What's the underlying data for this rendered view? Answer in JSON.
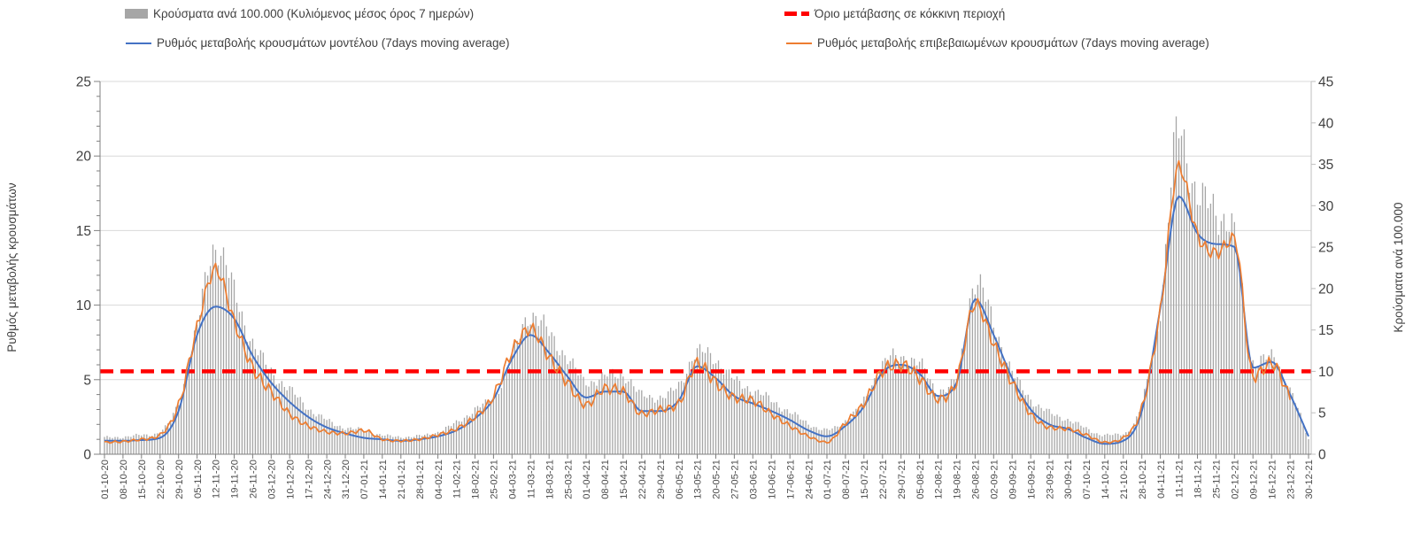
{
  "chart_data": {
    "type": "combo: daily bars + two lines, dual y-axis",
    "title": "",
    "x_axis": {
      "unit": "day",
      "range": "01-10-2020 to 30-12-2021",
      "tick_interval": "7 days",
      "tick_labels": [
        "01-10-20",
        "08-10-20",
        "15-10-20",
        "22-10-20",
        "29-10-20",
        "05-11-20",
        "12-11-20",
        "19-11-20",
        "26-11-20",
        "03-12-20",
        "10-12-20",
        "17-12-20",
        "24-12-20",
        "31-12-20",
        "07-01-21",
        "14-01-21",
        "21-01-21",
        "28-01-21",
        "04-02-21",
        "11-02-21",
        "18-02-21",
        "25-02-21",
        "04-03-21",
        "11-03-21",
        "18-03-21",
        "25-03-21",
        "01-04-21",
        "08-04-21",
        "15-04-21",
        "22-04-21",
        "29-04-21",
        "06-05-21",
        "13-05-21",
        "20-05-21",
        "27-05-21",
        "03-06-21",
        "10-06-21",
        "17-06-21",
        "24-06-21",
        "01-07-21",
        "08-07-21",
        "15-07-21",
        "22-07-21",
        "29-07-21",
        "05-08-21",
        "12-08-21",
        "19-08-21",
        "26-08-21",
        "02-09-21",
        "09-09-21",
        "16-09-21",
        "23-09-21",
        "30-09-21",
        "07-10-21",
        "14-10-21",
        "21-10-21",
        "28-10-21",
        "04-11-21",
        "11-11-21",
        "18-11-21",
        "25-11-21",
        "02-12-21",
        "09-12-21",
        "16-12-21",
        "23-12-21",
        "30-12-21"
      ]
    },
    "left_axis": {
      "title": "Ρυθμός μεταβολής κρουσμάτων",
      "min": 0,
      "max": 25,
      "tick_step": 5,
      "tick_labels": [
        0,
        5,
        10,
        15,
        20,
        25
      ],
      "minor_tick_step": 1
    },
    "right_axis": {
      "title": "Κρούσματα ανά 100.000",
      "min": 0,
      "max": 45,
      "tick_step": 5,
      "tick_labels": [
        0,
        5,
        10,
        15,
        20,
        25,
        30,
        35,
        40,
        45
      ]
    },
    "grid": "horizontal gridlines at left-axis majors",
    "legend_position": "top, two columns, two rows",
    "threshold": {
      "label": "Όριο μετάβασης σε κόκκινη περιοχή",
      "axis": "right",
      "value": 10,
      "color": "#FF0000",
      "style": "thick dashed"
    },
    "series": [
      {
        "name": "Κρούσματα ανά 100.000 (Κυλιόμενος μέσος όρος 7 ημερών)",
        "type": "bar",
        "axis": "right",
        "color": "#A6A6A6",
        "sampling": "values estimated at each weekly tick date",
        "weekly_values": [
          2.0,
          2.1,
          2.3,
          2.7,
          6.3,
          15.3,
          25.4,
          19.5,
          13.5,
          10.0,
          7.8,
          5.6,
          4.1,
          3.2,
          2.9,
          2.3,
          2.1,
          2.2,
          2.7,
          3.8,
          5.4,
          6.9,
          11.5,
          17.0,
          14.5,
          11.7,
          8.7,
          9.4,
          9.6,
          7.1,
          6.9,
          8.3,
          12.3,
          11.5,
          8.9,
          7.8,
          6.5,
          5.1,
          3.7,
          2.9,
          4.1,
          6.4,
          10.9,
          11.7,
          10.9,
          7.8,
          9.2,
          20.9,
          15.8,
          9.9,
          6.7,
          5.0,
          4.2,
          3.1,
          2.3,
          2.5,
          6.1,
          17.8,
          39.0,
          31.3,
          29.4,
          26.3,
          11.3,
          11.6,
          7.9,
          1.8
        ]
      },
      {
        "name": "Ρυθμός μεταβολής κρουσμάτων μοντέλου (7days moving average)",
        "type": "line",
        "axis": "left",
        "color": "#4472C4",
        "sampling": "values estimated at each weekly tick date",
        "weekly_values": [
          0.9,
          0.9,
          0.95,
          1.1,
          2.9,
          8.0,
          9.9,
          9.1,
          6.6,
          4.8,
          3.5,
          2.5,
          1.8,
          1.4,
          1.1,
          1.0,
          0.9,
          1.0,
          1.2,
          1.6,
          2.4,
          3.7,
          6.4,
          8.0,
          6.8,
          5.2,
          3.8,
          4.2,
          4.2,
          2.9,
          2.9,
          3.6,
          5.9,
          5.1,
          3.9,
          3.4,
          2.9,
          2.3,
          1.6,
          1.2,
          1.9,
          3.2,
          5.5,
          6.0,
          5.4,
          3.9,
          4.8,
          10.4,
          8.0,
          5.1,
          3.0,
          2.0,
          1.7,
          1.1,
          0.7,
          0.9,
          2.9,
          9.8,
          17.3,
          14.8,
          14.1,
          13.9,
          5.8,
          6.2,
          4.0,
          1.2
        ]
      },
      {
        "name": "Ρυθμός μεταβολής επιβεβαιωμένων κρουσμάτων (7days moving average)",
        "type": "line",
        "axis": "left",
        "color": "#ED7D31",
        "sampling": "values estimated at each weekly tick date; series ends 23-12-21",
        "weekly_values": [
          0.8,
          0.85,
          1.0,
          1.3,
          3.3,
          8.5,
          12.4,
          8.9,
          5.8,
          4.2,
          2.7,
          1.9,
          1.5,
          1.4,
          1.6,
          1.0,
          0.9,
          1.0,
          1.3,
          1.7,
          2.5,
          3.9,
          6.9,
          8.4,
          6.5,
          4.8,
          3.3,
          4.4,
          4.2,
          2.7,
          3.0,
          3.4,
          6.1,
          4.8,
          3.8,
          3.6,
          2.7,
          1.9,
          1.2,
          0.8,
          2.1,
          3.4,
          5.6,
          6.0,
          5.1,
          3.7,
          4.9,
          10.1,
          7.4,
          4.8,
          2.7,
          1.8,
          1.7,
          1.3,
          0.8,
          1.1,
          3.1,
          9.6,
          19.3,
          14.7,
          13.5,
          14.5,
          5.2,
          6.1,
          3.8,
          null
        ]
      }
    ]
  }
}
